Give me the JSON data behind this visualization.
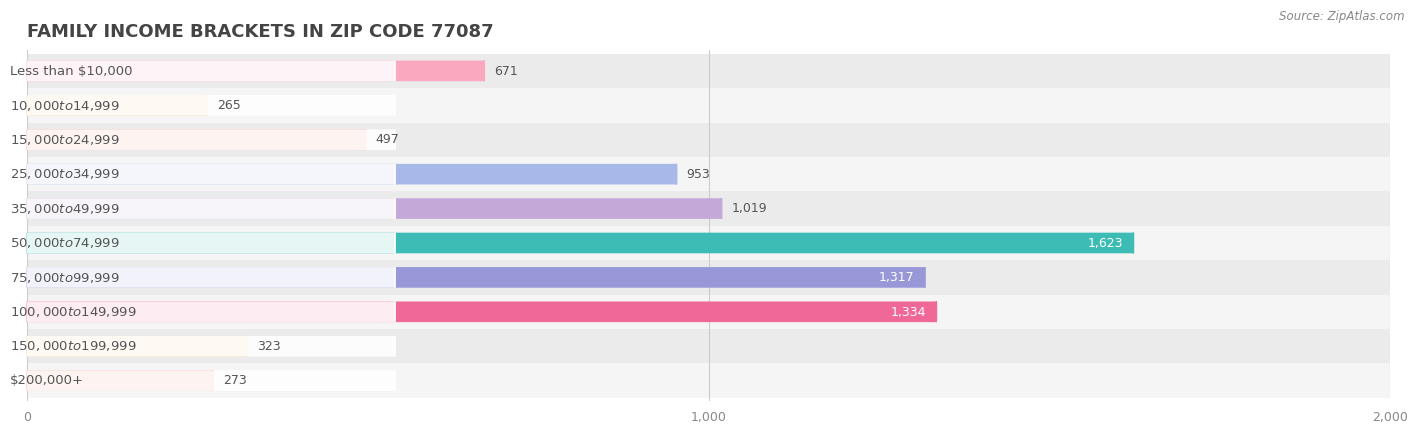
{
  "title": "FAMILY INCOME BRACKETS IN ZIP CODE 77087",
  "source": "Source: ZipAtlas.com",
  "categories": [
    "Less than $10,000",
    "$10,000 to $14,999",
    "$15,000 to $24,999",
    "$25,000 to $34,999",
    "$35,000 to $49,999",
    "$50,000 to $74,999",
    "$75,000 to $99,999",
    "$100,000 to $149,999",
    "$150,000 to $199,999",
    "$200,000+"
  ],
  "values": [
    671,
    265,
    497,
    953,
    1019,
    1623,
    1317,
    1334,
    323,
    273
  ],
  "bar_colors": [
    "#F9A8C0",
    "#F9CFA0",
    "#F4A898",
    "#A8B8E8",
    "#C4A8D8",
    "#3CBCB4",
    "#9898D8",
    "#F06898",
    "#F9CFA0",
    "#F4A898"
  ],
  "row_bg_colors": [
    "#EBEBEB",
    "#F5F5F5"
  ],
  "xlim": [
    0,
    2000
  ],
  "xticks": [
    0,
    1000,
    2000
  ],
  "xtick_labels": [
    "0",
    "1,000",
    "2,000"
  ],
  "bar_height": 0.6,
  "title_fontsize": 13,
  "label_fontsize": 9.5,
  "value_fontsize": 9,
  "background_color": "#FFFFFF",
  "title_color": "#444444",
  "label_color": "#555555",
  "value_color_inside": "#FFFFFF",
  "value_color_outside": "#555555",
  "pill_bg": "#FFFFFF",
  "pill_alpha": 0.88
}
